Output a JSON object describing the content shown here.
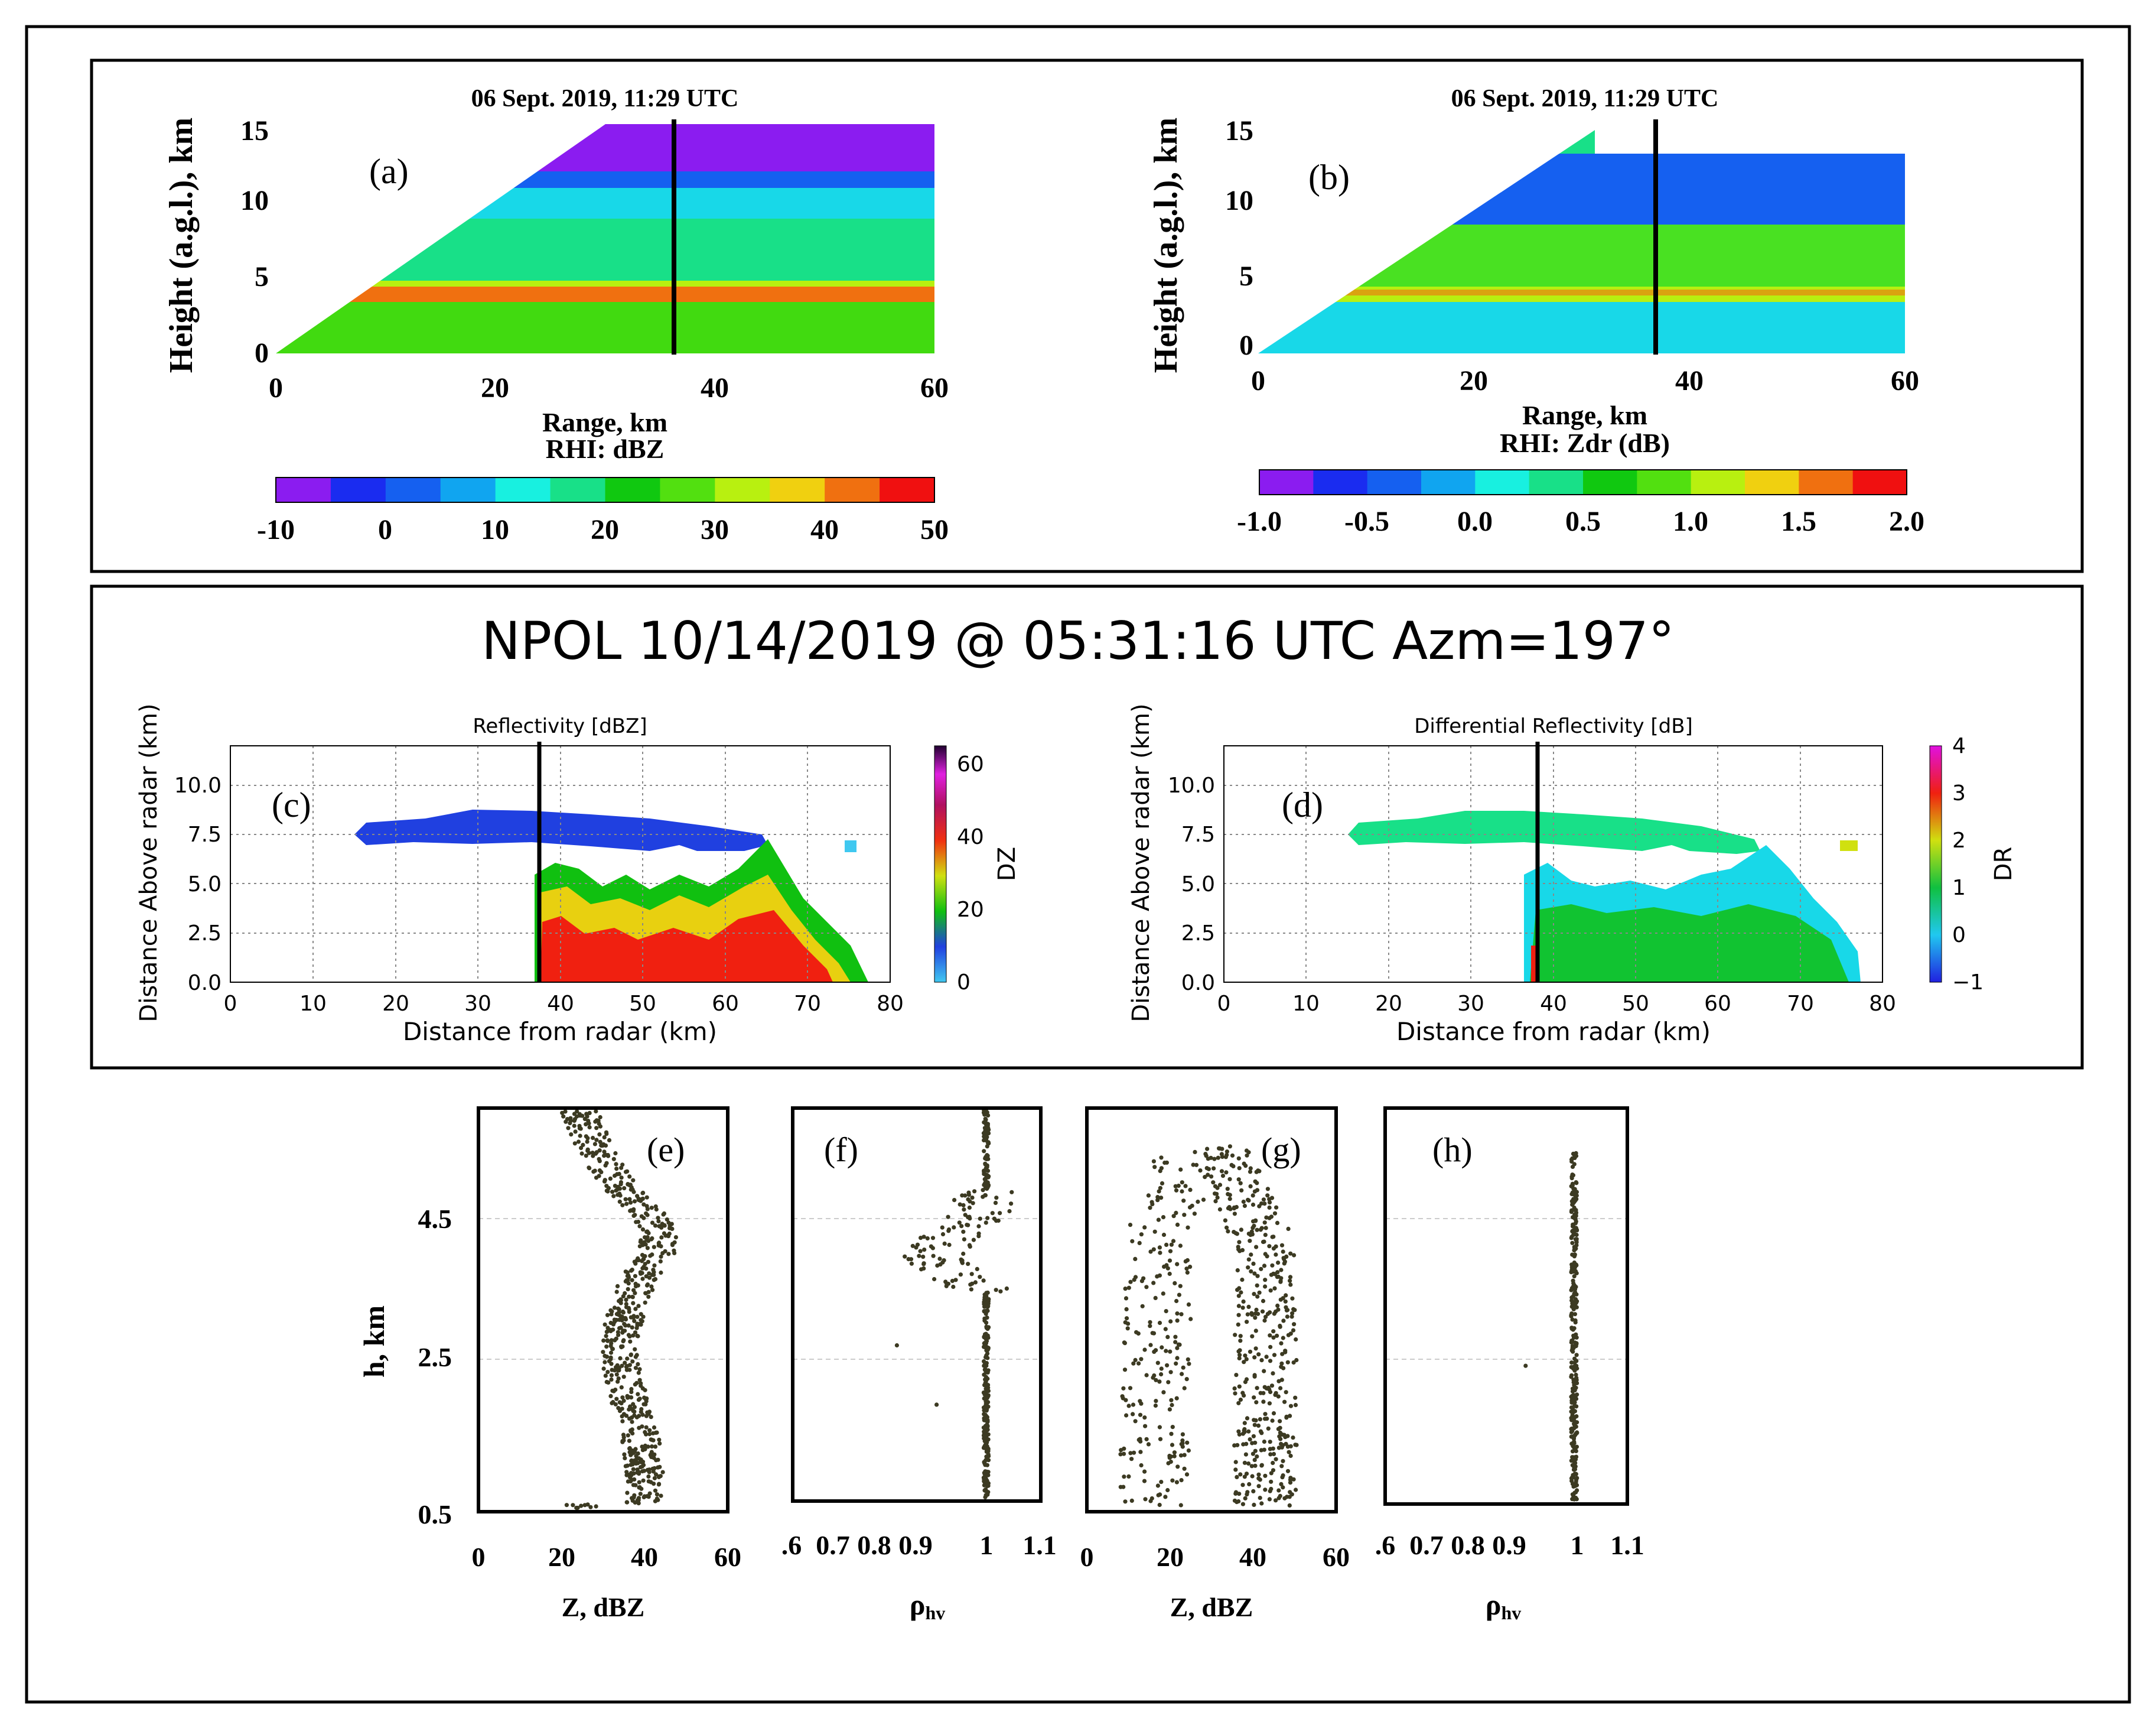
{
  "panel_labels": [
    "(a)",
    "(b)",
    "(c)",
    "(d)",
    "(e)",
    "(f)",
    "(g)",
    "(h)"
  ],
  "top_row": {
    "timestamp": "06 Sept. 2019, 11:29 UTC",
    "ylabel": "Height (a.g.l.), km",
    "xlabel": "Range, km",
    "xticks": [
      "0",
      "20",
      "40",
      "60"
    ],
    "yticks": [
      "0",
      "5",
      "10",
      "15"
    ],
    "rhi_a_label": "RHI: dBZ",
    "rhi_b_label": "RHI: Zdr (dB)",
    "cbar_a_ticks": [
      "-10",
      "0",
      "10",
      "20",
      "30",
      "40",
      "50"
    ],
    "cbar_b_ticks": [
      "-1.0",
      "-0.5",
      "0.0",
      "0.5",
      "1.0",
      "1.5",
      "2.0"
    ]
  },
  "middle_row": {
    "title": "NPOL 10/14/2019 @ 05:31:16 UTC  Azm=197°",
    "c_title": "Reflectivity [dBZ]",
    "d_title": "Differential Reflectivity [dB]",
    "ylabel": "Distance Above radar  (km)",
    "xlabel": "Distance from radar (km)",
    "xticks": [
      "0",
      "10",
      "20",
      "30",
      "40",
      "50",
      "60",
      "70",
      "80"
    ],
    "yticks": [
      "0.0",
      "2.5",
      "5.0",
      "7.5",
      "10.0"
    ],
    "c_cbar_label": "DZ",
    "c_cbar_ticks": [
      "0",
      "20",
      "40",
      "60"
    ],
    "d_cbar_label": "DR",
    "d_cbar_ticks": [
      "−1",
      "0",
      "1",
      "2",
      "3",
      "4"
    ]
  },
  "bottom_row": {
    "ylabel": "h, km",
    "yticks": [
      "0.5",
      "2.5",
      "4.5"
    ],
    "z_xlabel": "Z, dBZ",
    "z_xticks": [
      "0",
      "20",
      "40",
      "60"
    ],
    "rho_xlabel_main": "ρ",
    "rho_xlabel_sub": "hv",
    "rho_xticks": [
      ".6",
      "0.7",
      "0.8",
      "0.9",
      "1",
      "1.1"
    ]
  },
  "colors": {
    "vertical_line": "#000000",
    "scatter": "#3c3a22",
    "dbz_scale": [
      "#8b1cf0",
      "#1a2cf0",
      "#1560f0",
      "#10a5f0",
      "#18f0e0",
      "#18e088",
      "#10c810",
      "#52e010",
      "#b8f010",
      "#f0d010",
      "#f07010",
      "#f01010"
    ],
    "zdr_scale": [
      "#8b1cf0",
      "#1a2cf0",
      "#1560f0",
      "#10a5f0",
      "#18f0e0",
      "#18e088",
      "#10c810",
      "#52e010",
      "#b8f010",
      "#f0d010",
      "#f07010",
      "#f01010"
    ]
  },
  "chart_data": [
    {
      "panel": "(a)",
      "type": "heatmap",
      "title": "06 Sept. 2019, 11:29 UTC",
      "xlabel": "Range, km",
      "ylabel": "Height (a.g.l.), km",
      "xlim": [
        0,
        60
      ],
      "ylim": [
        0,
        15
      ],
      "colorbar": {
        "label": "RHI: dBZ",
        "range": [
          -10,
          50
        ]
      },
      "vertical_line_x": 36,
      "layers": [
        {
          "y_range": [
            0,
            3.5
          ],
          "dbz": 25
        },
        {
          "y_range": [
            3.5,
            4.5
          ],
          "dbz": 42,
          "note": "bright band"
        },
        {
          "y_range": [
            4.5,
            9
          ],
          "dbz": 22
        },
        {
          "y_range": [
            9,
            12
          ],
          "dbz": 5
        },
        {
          "y_range": [
            12,
            15
          ],
          "dbz": -5
        }
      ]
    },
    {
      "panel": "(b)",
      "type": "heatmap",
      "title": "06 Sept. 2019, 11:29 UTC",
      "xlabel": "Range, km",
      "ylabel": "Height (a.g.l.), km",
      "xlim": [
        0,
        60
      ],
      "ylim": [
        0,
        15
      ],
      "colorbar": {
        "label": "RHI: Zdr (dB)",
        "range": [
          -1.0,
          2.0
        ]
      },
      "vertical_line_x": 36,
      "layers": [
        {
          "y_range": [
            0,
            3.5
          ],
          "zdr": 0.4
        },
        {
          "y_range": [
            3.5,
            4.5
          ],
          "zdr": 1.5,
          "note": "bright band"
        },
        {
          "y_range": [
            4.5,
            8.5
          ],
          "zdr": 0.6
        },
        {
          "y_range": [
            8.5,
            13
          ],
          "zdr": -0.3
        }
      ]
    },
    {
      "panel": "(c)",
      "type": "heatmap",
      "title": "Reflectivity [dBZ]",
      "xlabel": "Distance from radar (km)",
      "ylabel": "Distance Above radar  (km)",
      "xlim": [
        0,
        80
      ],
      "ylim": [
        0,
        12
      ],
      "colorbar": {
        "label": "DZ",
        "range": [
          0,
          65
        ]
      },
      "vertical_line_x": 37.5,
      "regions": [
        {
          "x_range": [
            14,
            77
          ],
          "y_range": [
            6,
            8.5
          ],
          "dz": 8,
          "note": "anvil"
        },
        {
          "x_range": [
            37,
            77
          ],
          "y_range": [
            0,
            6
          ],
          "dz": 40,
          "note": "convective core"
        }
      ]
    },
    {
      "panel": "(d)",
      "type": "heatmap",
      "title": "Differential Reflectivity [dB]",
      "xlabel": "Distance from radar (km)",
      "ylabel": "Distance Above radar  (km)",
      "xlim": [
        0,
        80
      ],
      "ylim": [
        0,
        12
      ],
      "colorbar": {
        "label": "DR",
        "range": [
          -1,
          4
        ]
      },
      "vertical_line_x": 38,
      "regions": [
        {
          "x_range": [
            14,
            77
          ],
          "y_range": [
            6,
            8.5
          ],
          "dr": 0.2,
          "note": "anvil"
        },
        {
          "x_range": [
            37,
            77
          ],
          "y_range": [
            0,
            6
          ],
          "dr": 1.0,
          "note": "convective core"
        }
      ]
    },
    {
      "panel": "(e)",
      "type": "scatter",
      "xlabel": "Z, dBZ",
      "ylabel": "h, km",
      "xlim": [
        0,
        60
      ],
      "ylim": [
        0.5,
        5.8
      ],
      "profile": [
        {
          "h": 0.6,
          "z": 40
        },
        {
          "h": 1.0,
          "z": 40
        },
        {
          "h": 1.5,
          "z": 39
        },
        {
          "h": 2.0,
          "z": 36
        },
        {
          "h": 2.5,
          "z": 34
        },
        {
          "h": 3.0,
          "z": 35
        },
        {
          "h": 3.5,
          "z": 38
        },
        {
          "h": 3.9,
          "z": 43
        },
        {
          "h": 4.2,
          "z": 44
        },
        {
          "h": 4.5,
          "z": 39
        },
        {
          "h": 4.9,
          "z": 32
        },
        {
          "h": 5.3,
          "z": 28
        },
        {
          "h": 5.8,
          "z": 24
        }
      ]
    },
    {
      "panel": "(f)",
      "type": "scatter",
      "xlabel": "ρhv",
      "ylabel": "h, km",
      "xlim": [
        0.6,
        1.1
      ],
      "ylim": [
        0.5,
        5.8
      ],
      "profile": [
        {
          "h": 0.6,
          "rho": 0.99
        },
        {
          "h": 2.5,
          "rho": 0.99
        },
        {
          "h": 3.3,
          "rho": 0.99
        },
        {
          "h": 3.6,
          "rho": 0.92
        },
        {
          "h": 3.8,
          "rho": 0.88
        },
        {
          "h": 4.1,
          "rho": 0.92
        },
        {
          "h": 4.4,
          "rho": 0.98
        },
        {
          "h": 5.0,
          "rho": 0.99
        },
        {
          "h": 5.8,
          "rho": 0.99
        }
      ]
    },
    {
      "panel": "(g)",
      "type": "scatter",
      "xlabel": "Z, dBZ",
      "ylabel": "h, km",
      "xlim": [
        0,
        60
      ],
      "ylim": [
        0.5,
        5.8
      ],
      "note": "two branches: left branch ~8-25 dBZ and right branch ~35-50 dBZ, merging near top at ~5.2 km"
    },
    {
      "panel": "(h)",
      "type": "scatter",
      "xlabel": "ρhv",
      "ylabel": "h, km",
      "xlim": [
        0.6,
        1.1
      ],
      "ylim": [
        0.5,
        5.8
      ],
      "profile": [
        {
          "h": 0.6,
          "rho": 0.99
        },
        {
          "h": 2.5,
          "rho": 0.99
        },
        {
          "h": 5.2,
          "rho": 0.99
        }
      ]
    }
  ]
}
